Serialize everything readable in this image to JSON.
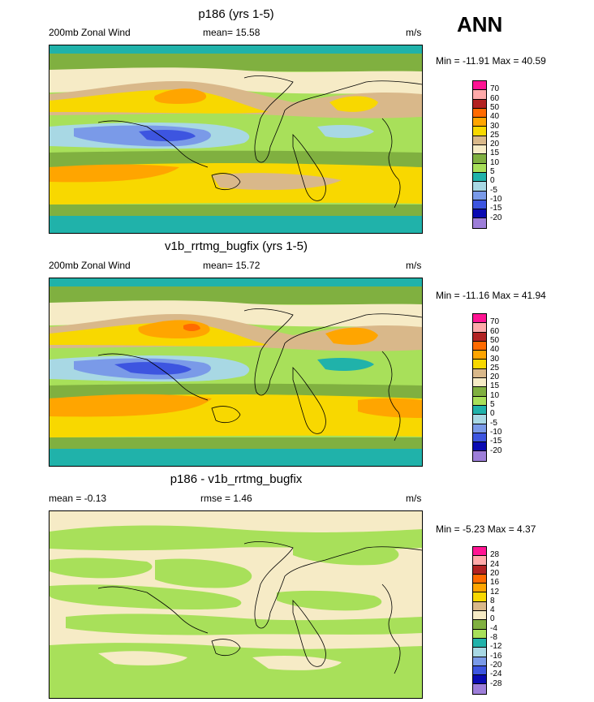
{
  "season": "ANN",
  "abs_colors": [
    "#9d7ed9",
    "#0a0ab2",
    "#3d55e0",
    "#7a9ae8",
    "#a8d8e4",
    "#20b2aa",
    "#a8e05a",
    "#80b040",
    "#f6ebc6",
    "#d9b88a",
    "#f8d800",
    "#ffa500",
    "#ff6a00",
    "#b22222",
    "#ffaaaa",
    "#ff1493"
  ],
  "abs_levels": [
    "-20",
    "-15",
    "-10",
    "-5",
    "0",
    "5",
    "10",
    "15",
    "20",
    "25",
    "30",
    "40",
    "50",
    "60",
    "70"
  ],
  "diff_colors": [
    "#9d7ed9",
    "#0a0ab2",
    "#3d55e0",
    "#7a9ae8",
    "#a8d8e4",
    "#20b2aa",
    "#a8e05a",
    "#80b040",
    "#f6ebc6",
    "#d9b88a",
    "#f8d800",
    "#ffa500",
    "#ff6a00",
    "#b22222",
    "#ffaaaa",
    "#ff1493"
  ],
  "diff_levels": [
    "-28",
    "-24",
    "-20",
    "-16",
    "-12",
    "-8",
    "-4",
    "0",
    "4",
    "8",
    "12",
    "16",
    "20",
    "24",
    "28"
  ],
  "panels": [
    {
      "title": "p186 (yrs 1-5)",
      "left_label": "200mb Zonal Wind",
      "mid_label": "mean=  15.58",
      "units": "m/s",
      "minmax": "Min = -11.91 Max =  40.59"
    },
    {
      "title": "v1b_rrtmg_bugfix (yrs 1-5)",
      "left_label": "200mb Zonal Wind",
      "mid_label": "mean=  15.72",
      "units": "m/s",
      "minmax": "Min = -11.16 Max =  41.94"
    },
    {
      "title": "p186 - v1b_rrtmg_bugfix",
      "left_label": "mean =  -0.13",
      "mid_label": "rmse =   1.46",
      "units": "m/s",
      "minmax": "Min =  -5.23 Max =   4.37"
    }
  ]
}
